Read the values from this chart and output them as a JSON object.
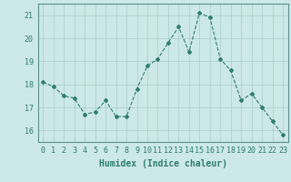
{
  "x": [
    0,
    1,
    2,
    3,
    4,
    5,
    6,
    7,
    8,
    9,
    10,
    11,
    12,
    13,
    14,
    15,
    16,
    17,
    18,
    19,
    20,
    21,
    22,
    23
  ],
  "y": [
    18.1,
    17.9,
    17.5,
    17.4,
    16.7,
    16.8,
    17.3,
    16.6,
    16.6,
    17.8,
    18.8,
    19.1,
    19.8,
    20.5,
    19.4,
    21.1,
    20.9,
    19.1,
    18.6,
    17.3,
    17.6,
    17.0,
    16.4,
    15.8
  ],
  "line_color": "#2e7d70",
  "marker": "D",
  "marker_size": 2,
  "bg_color": "#cde8e8",
  "grid_color": "#aacccc",
  "spine_color": "#5a9090",
  "xlabel": "Humidex (Indice chaleur)",
  "xlabel_fontsize": 7,
  "tick_fontsize": 6,
  "ylim": [
    15.5,
    21.5
  ],
  "xlim": [
    -0.5,
    23.5
  ],
  "yticks": [
    16,
    17,
    18,
    19,
    20,
    21
  ],
  "xticks": [
    0,
    1,
    2,
    3,
    4,
    5,
    6,
    7,
    8,
    9,
    10,
    11,
    12,
    13,
    14,
    15,
    16,
    17,
    18,
    19,
    20,
    21,
    22,
    23
  ]
}
